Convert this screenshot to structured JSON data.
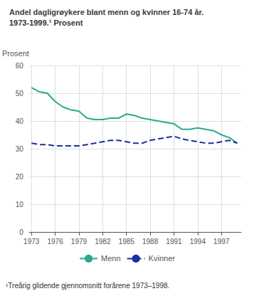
{
  "chart_data": {
    "type": "line",
    "title": "Andel dagligrøykere blant menn og kvinner 16-74 år.",
    "subtitle": "1973-1999.¹ Prosent",
    "y_label": "Prosent",
    "annotations": [
      "¹Treårig glidende gjennomsnitt forårene 1973–1998."
    ],
    "x": [
      1973,
      1974,
      1975,
      1976,
      1977,
      1978,
      1979,
      1980,
      1981,
      1982,
      1983,
      1984,
      1985,
      1986,
      1987,
      1988,
      1989,
      1990,
      1991,
      1992,
      1993,
      1994,
      1995,
      1996,
      1997,
      1998,
      1999
    ],
    "series": [
      {
        "name": "Menn",
        "color": "#2aaa8a",
        "line_style": "solid",
        "values": [
          52,
          50.5,
          50,
          47,
          45,
          44,
          43.5,
          41,
          40.5,
          40.5,
          41,
          41,
          42.5,
          42,
          41,
          40.5,
          40,
          39.5,
          39,
          37,
          37,
          37.5,
          37,
          36.5,
          35,
          34,
          32
        ]
      },
      {
        "name": "Kvinner",
        "color": "#1f2da0",
        "line_style": "dashed",
        "values": [
          32,
          31.5,
          31.5,
          31,
          31,
          31,
          31,
          31.5,
          32,
          32.5,
          33,
          33,
          32.5,
          32,
          32,
          33,
          33.5,
          34,
          34.5,
          33.5,
          33,
          32.5,
          32,
          32,
          32.5,
          33,
          32
        ]
      }
    ],
    "xlim": [
      1972.7,
      1999.5
    ],
    "xticks": [
      1973,
      1976,
      1979,
      1982,
      1985,
      1988,
      1991,
      1994,
      1997
    ],
    "ylim": [
      0,
      60
    ],
    "yticks": [
      0,
      10,
      20,
      30,
      40,
      50,
      60
    ],
    "grid": true,
    "legend": "bottom"
  }
}
